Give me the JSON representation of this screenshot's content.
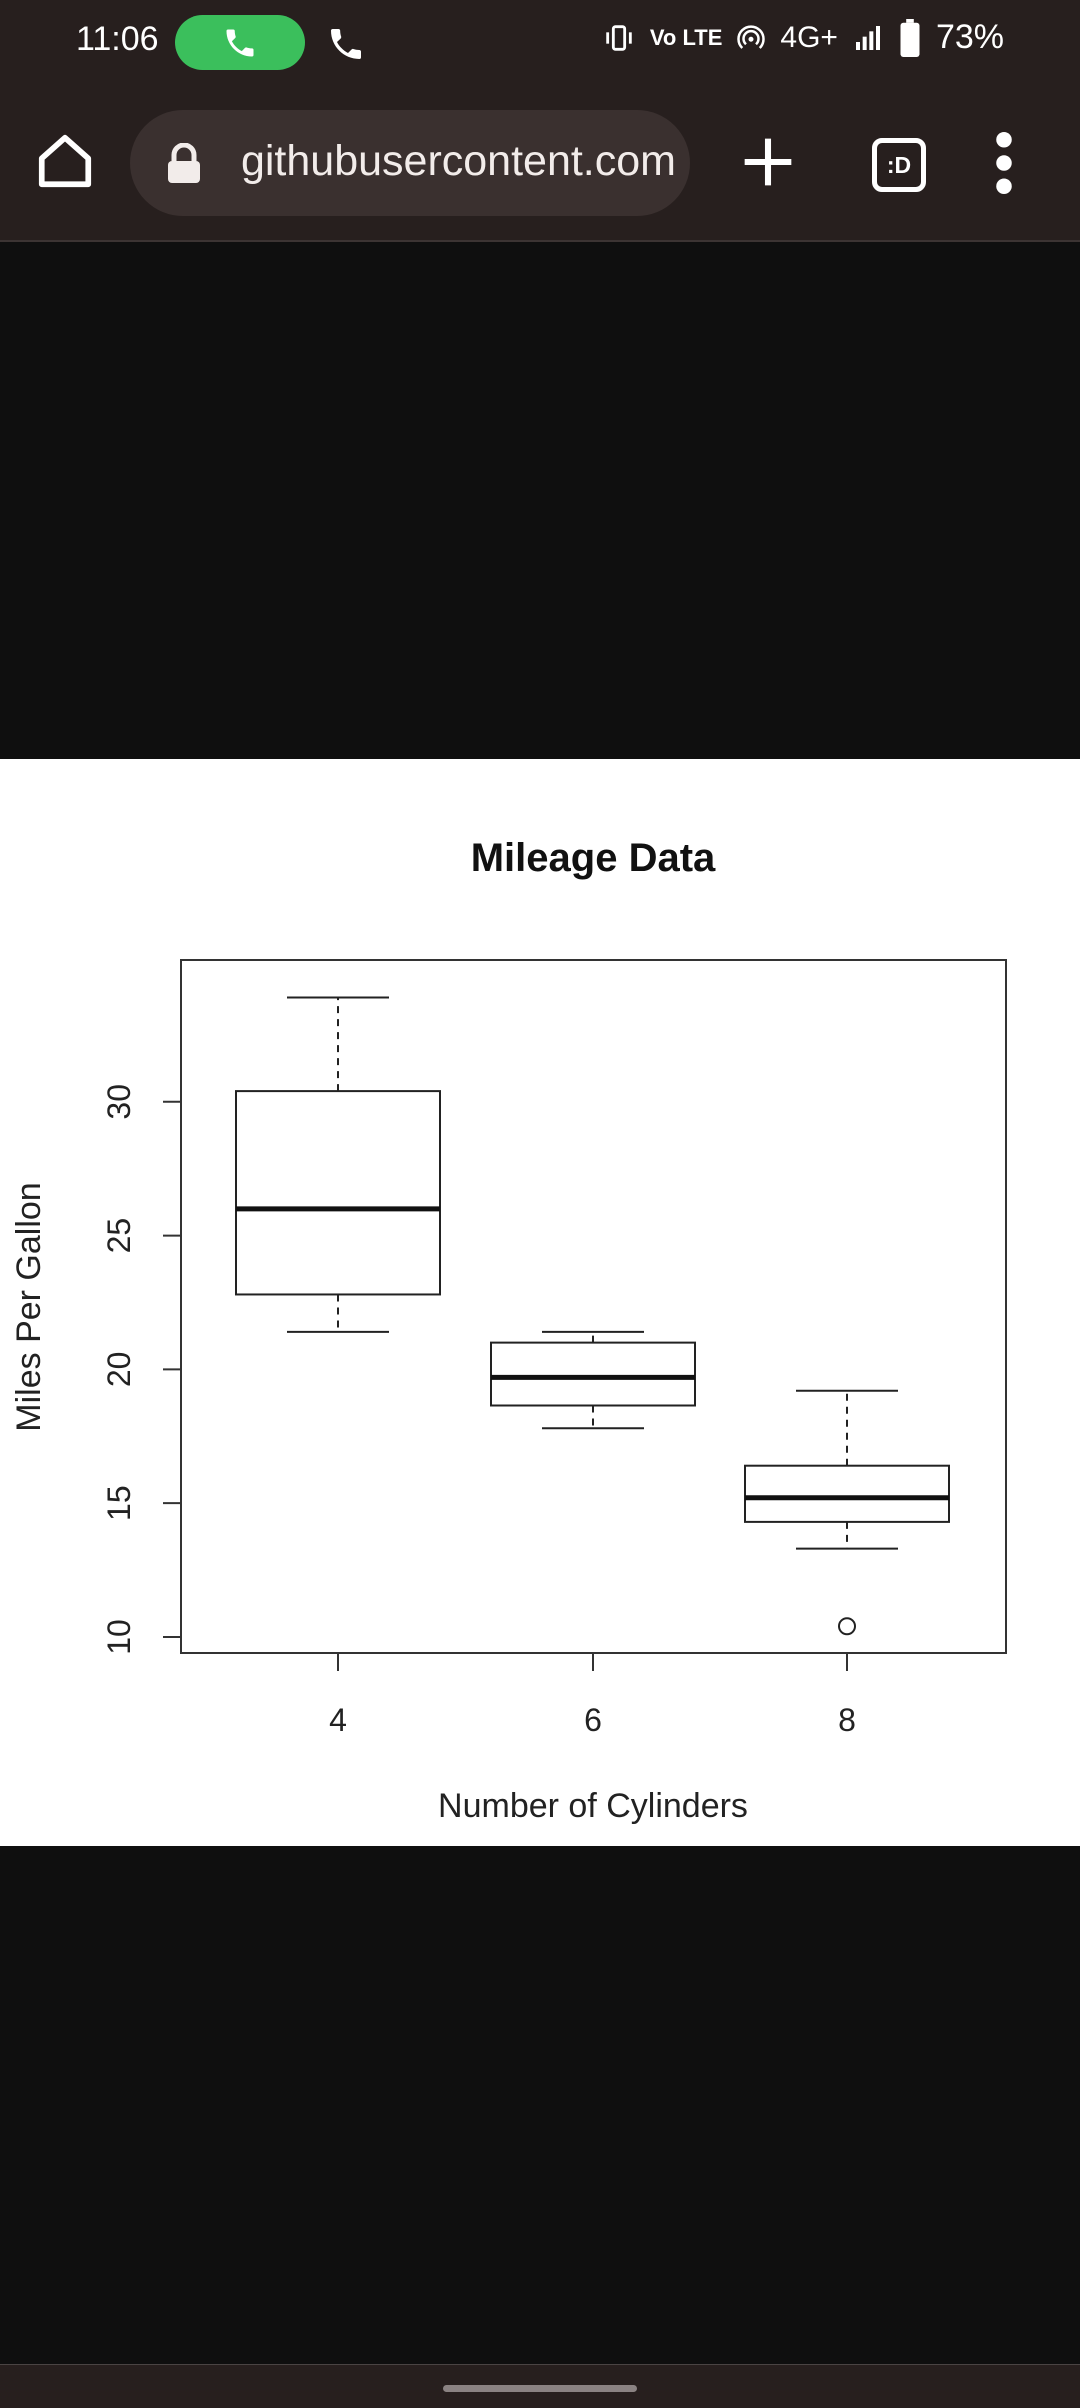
{
  "status_bar": {
    "time": "11:06",
    "network": "4G+",
    "volte_label": "Vo LTE",
    "battery": "73%",
    "icons": [
      "phone-call-icon",
      "phone-icon",
      "vibrate-icon",
      "hotspot-icon",
      "signal-icon",
      "battery-icon"
    ]
  },
  "browser": {
    "url": "githubusercontent.com",
    "tabs_label": ":D",
    "icons": [
      "home-icon",
      "lock-icon",
      "plus-icon",
      "tabs-icon",
      "more-vert-icon"
    ]
  },
  "chart_data": {
    "type": "boxplot",
    "title": "Mileage Data",
    "xlabel": "Number of Cylinders",
    "ylabel": "Miles Per Gallon",
    "categories": [
      "4",
      "6",
      "8"
    ],
    "y_ticks": [
      10,
      15,
      20,
      25,
      30
    ],
    "ylim": [
      9.4,
      35.3
    ],
    "boxes": [
      {
        "category": "4",
        "whisker_low": 21.4,
        "q1": 22.8,
        "median": 26.0,
        "q3": 30.4,
        "whisker_high": 33.9,
        "outliers": []
      },
      {
        "category": "6",
        "whisker_low": 17.8,
        "q1": 18.65,
        "median": 19.7,
        "q3": 21.0,
        "whisker_high": 21.4,
        "outliers": []
      },
      {
        "category": "8",
        "whisker_low": 13.3,
        "q1": 14.3,
        "median": 15.2,
        "q3": 16.4,
        "whisker_high": 19.2,
        "outliers": [
          10.4
        ]
      }
    ],
    "grid": false,
    "legend": "none"
  }
}
